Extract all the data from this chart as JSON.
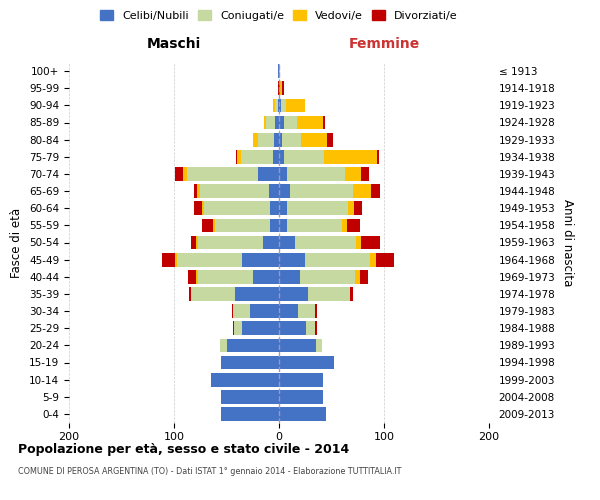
{
  "age_groups_display": [
    "100+",
    "95-99",
    "90-94",
    "85-89",
    "80-84",
    "75-79",
    "70-74",
    "65-69",
    "60-64",
    "55-59",
    "50-54",
    "45-49",
    "40-44",
    "35-39",
    "30-34",
    "25-29",
    "20-24",
    "15-19",
    "10-14",
    "5-9",
    "0-4"
  ],
  "anni_nascita_display": [
    "≤ 1913",
    "1914-1918",
    "1919-1923",
    "1924-1928",
    "1929-1933",
    "1934-1938",
    "1939-1943",
    "1944-1948",
    "1949-1953",
    "1954-1958",
    "1959-1963",
    "1964-1968",
    "1969-1973",
    "1974-1978",
    "1979-1983",
    "1984-1988",
    "1989-1993",
    "1994-1998",
    "1999-2003",
    "2004-2008",
    "2009-2013"
  ],
  "maschi": {
    "celibi": [
      1,
      0,
      1,
      4,
      5,
      6,
      20,
      10,
      9,
      9,
      15,
      35,
      25,
      42,
      28,
      35,
      50,
      55,
      65,
      55,
      55
    ],
    "coniugati": [
      0,
      0,
      3,
      8,
      15,
      30,
      68,
      65,
      62,
      52,
      62,
      62,
      52,
      42,
      16,
      8,
      6,
      0,
      0,
      0,
      0
    ],
    "vedovi": [
      0,
      0,
      2,
      2,
      5,
      4,
      3,
      3,
      2,
      2,
      2,
      2,
      2,
      0,
      0,
      0,
      0,
      0,
      0,
      0,
      0
    ],
    "divorziati": [
      0,
      1,
      0,
      0,
      0,
      1,
      8,
      3,
      8,
      10,
      5,
      12,
      8,
      2,
      1,
      1,
      0,
      0,
      0,
      0,
      0
    ]
  },
  "femmine": {
    "nubili": [
      0,
      1,
      2,
      5,
      3,
      5,
      8,
      10,
      8,
      8,
      15,
      25,
      20,
      28,
      18,
      26,
      35,
      52,
      42,
      42,
      45
    ],
    "coniugate": [
      0,
      0,
      5,
      12,
      18,
      38,
      55,
      60,
      58,
      52,
      58,
      62,
      52,
      40,
      16,
      8,
      6,
      0,
      0,
      0,
      0
    ],
    "vedove": [
      1,
      2,
      18,
      25,
      25,
      50,
      15,
      18,
      5,
      5,
      5,
      5,
      5,
      0,
      0,
      0,
      0,
      0,
      0,
      0,
      0
    ],
    "divorziate": [
      0,
      2,
      0,
      2,
      5,
      2,
      8,
      8,
      8,
      12,
      18,
      18,
      8,
      2,
      2,
      2,
      0,
      0,
      0,
      0,
      0
    ]
  },
  "colors": {
    "celibi": "#4472c4",
    "coniugati": "#c5d9a0",
    "vedovi": "#ffc000",
    "divorziati": "#c00000"
  },
  "legend_labels": [
    "Celibi/Nubili",
    "Coniugati/e",
    "Vedovi/e",
    "Divorziati/e"
  ],
  "title": "Popolazione per età, sesso e stato civile - 2014",
  "subtitle": "COMUNE DI PEROSA ARGENTINA (TO) - Dati ISTAT 1° gennaio 2014 - Elaborazione TUTTITALIA.IT",
  "ylabel_left": "Fasce di età",
  "ylabel_right": "Anni di nascita",
  "xlabel_left": "Maschi",
  "xlabel_right": "Femmine",
  "xlim": 200,
  "bg_color": "#ffffff",
  "grid_color": "#cccccc",
  "bar_height": 0.8
}
